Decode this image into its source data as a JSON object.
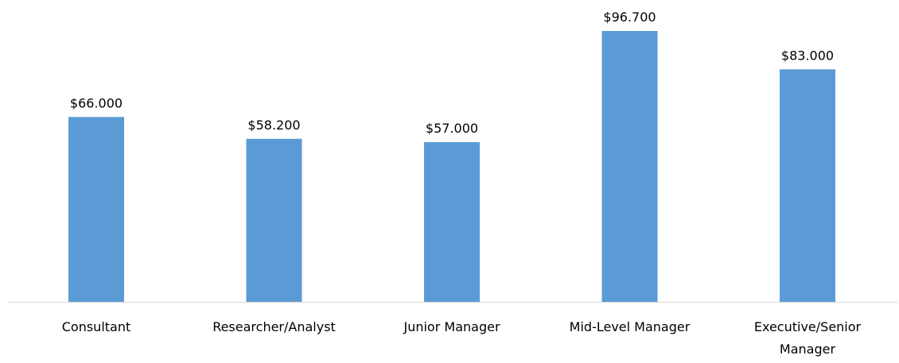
{
  "chart_data": {
    "type": "bar",
    "categories": [
      "Consultant",
      "Researcher/Analyst",
      "Junior Manager",
      "Mid-Level Manager",
      "Executive/Senior Manager"
    ],
    "values": [
      66000,
      58200,
      57000,
      96700,
      83000
    ],
    "value_labels": [
      "$66.000",
      "$58.200",
      "$57.000",
      "$96.700",
      "$83.000"
    ],
    "color": "#5b9bd5"
  }
}
